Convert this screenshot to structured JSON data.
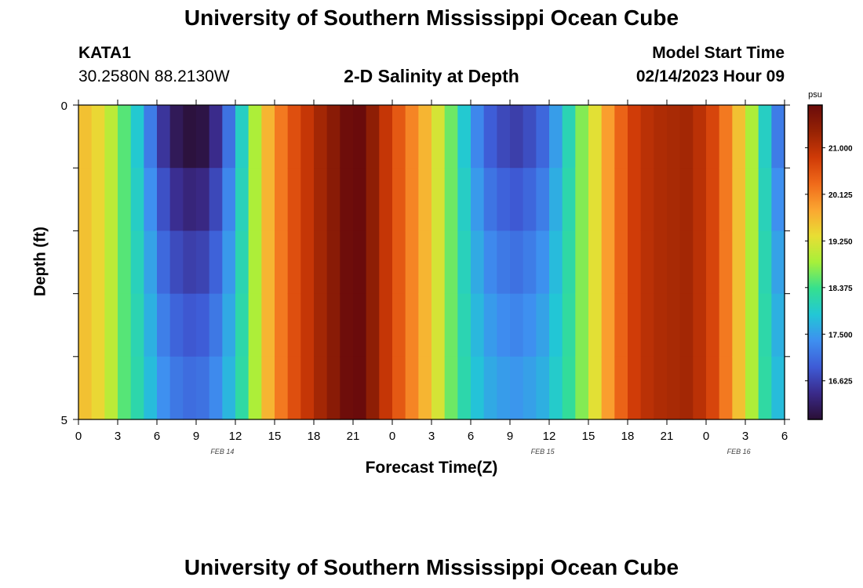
{
  "page": {
    "title": "University of Southern Mississippi Ocean Cube",
    "footer_title": "University of Southern Mississippi Ocean Cube",
    "station": "KATA1",
    "coords": "30.2580N  88.2130W",
    "subtitle": "2-D Salinity at Depth",
    "model_start_label": "Model Start Time",
    "model_start_value": "02/14/2023 Hour 09"
  },
  "chart_data": {
    "type": "heatmap",
    "title": "2-D Salinity at Depth",
    "xlabel": "Forecast Time(Z)",
    "ylabel": "Depth (ft)",
    "x_ticks": [
      "0",
      "3",
      "6",
      "9",
      "12",
      "15",
      "18",
      "21",
      "0",
      "3",
      "6",
      "9",
      "12",
      "15",
      "18",
      "21",
      "0",
      "3",
      "6"
    ],
    "x_range_hours": [
      0,
      54
    ],
    "date_labels": [
      {
        "label": "FEB 14",
        "hour": 11
      },
      {
        "label": "FEB 15",
        "hour": 35.5
      },
      {
        "label": "FEB 16",
        "hour": 50.5
      }
    ],
    "y_ticks": [
      "0",
      "5"
    ],
    "y_range_ft": [
      0,
      5
    ],
    "depth_levels": 5,
    "colorbar": {
      "unit": "psu",
      "min": 15.9,
      "max": 21.8,
      "ticks": [
        "21.000",
        "20.125",
        "19.250",
        "18.375",
        "17.500",
        "16.625"
      ],
      "tick_values": [
        21.0,
        20.125,
        19.25,
        18.375,
        17.5,
        16.625
      ]
    },
    "time_hours": [
      0,
      1,
      2,
      3,
      4,
      5,
      6,
      7,
      8,
      9,
      10,
      11,
      12,
      13,
      14,
      15,
      16,
      17,
      18,
      19,
      20,
      21,
      22,
      23,
      24,
      25,
      26,
      27,
      28,
      29,
      30,
      31,
      32,
      33,
      34,
      35,
      36,
      37,
      38,
      39,
      40,
      41,
      42,
      43,
      44,
      45,
      46,
      47,
      48,
      49,
      50,
      51,
      52,
      53
    ],
    "surface_salinity": [
      19.6,
      19.4,
      19.0,
      18.5,
      17.9,
      17.2,
      16.5,
      16.1,
      15.95,
      16.0,
      16.4,
      17.1,
      18.0,
      18.9,
      19.7,
      20.2,
      20.6,
      20.9,
      21.2,
      21.45,
      21.75,
      21.8,
      21.4,
      20.9,
      20.5,
      20.1,
      19.7,
      19.2,
      18.6,
      17.9,
      17.3,
      16.9,
      16.7,
      16.6,
      16.75,
      17.0,
      17.5,
      18.1,
      18.7,
      19.3,
      19.9,
      20.4,
      20.8,
      21.0,
      21.1,
      21.15,
      21.2,
      21.0,
      20.7,
      20.2,
      19.6,
      18.9,
      18.0,
      17.2
    ],
    "depth_adjust": [
      0.0,
      0.35,
      0.65,
      0.9,
      1.1
    ]
  },
  "colors": {
    "scale": [
      "#2a0f35",
      "#3a2a8a",
      "#3e5bd6",
      "#3e8ff0",
      "#22c7d6",
      "#35e08f",
      "#a6f03a",
      "#e8de34",
      "#fba631",
      "#f06a1a",
      "#cf3a07",
      "#962204",
      "#6a0b0b"
    ]
  }
}
